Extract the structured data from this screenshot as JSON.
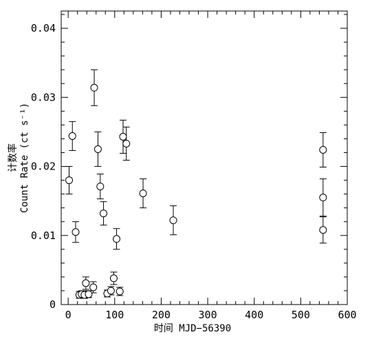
{
  "chart_data": {
    "type": "scatter",
    "xlabel": "时间 MJD−56390",
    "ylabel": "Count Rate (ct s⁻¹)",
    "ylabel_prefix": "计数率",
    "xlim": [
      -15,
      600
    ],
    "ylim": [
      0,
      0.0425
    ],
    "x_ticks": [
      0,
      100,
      200,
      300,
      400,
      500,
      600
    ],
    "y_ticks": [
      0,
      0.01,
      0.02,
      0.03,
      0.04
    ],
    "x_tick_labels": [
      "0",
      "100",
      "200",
      "300",
      "400",
      "500",
      "600"
    ],
    "y_tick_labels": [
      "0",
      "0.01",
      "0.02",
      "0.03",
      "0.04"
    ],
    "grid": false,
    "marker": "open-circle",
    "points": [
      {
        "x": 2,
        "y": 0.018,
        "err": 0.002
      },
      {
        "x": 9,
        "y": 0.0244,
        "err": 0.0021
      },
      {
        "x": 16,
        "y": 0.0105,
        "err": 0.0015
      },
      {
        "x": 24,
        "y": 0.0014,
        "err": 0.0005
      },
      {
        "x": 29,
        "y": 0.0015,
        "err": 0.0005
      },
      {
        "x": 35,
        "y": 0.0014,
        "err": 0.0005
      },
      {
        "x": 38,
        "y": 0.0031,
        "err": 0.0009
      },
      {
        "x": 44,
        "y": 0.0015,
        "err": 0.0005
      },
      {
        "x": 54,
        "y": 0.0025,
        "err": 0.0008
      },
      {
        "x": 56,
        "y": 0.0314,
        "err": 0.0026
      },
      {
        "x": 64,
        "y": 0.0225,
        "err": 0.0025
      },
      {
        "x": 69,
        "y": 0.0171,
        "err": 0.0018
      },
      {
        "x": 76,
        "y": 0.0132,
        "err": 0.0017
      },
      {
        "x": 84,
        "y": 0.0016,
        "err": 0.0005
      },
      {
        "x": 92,
        "y": 0.002,
        "err": 0.0006
      },
      {
        "x": 98,
        "y": 0.0038,
        "err": 0.0009
      },
      {
        "x": 104,
        "y": 0.0095,
        "err": 0.0015
      },
      {
        "x": 111,
        "y": 0.0019,
        "err": 0.0006
      },
      {
        "x": 118,
        "y": 0.0243,
        "err": 0.0024
      },
      {
        "x": 125,
        "y": 0.0233,
        "err": 0.0024
      },
      {
        "x": 161,
        "y": 0.0161,
        "err": 0.0021
      },
      {
        "x": 226,
        "y": 0.0122,
        "err": 0.0021
      },
      {
        "x": 548,
        "y": 0.0224,
        "err": 0.0025
      },
      {
        "x": 548,
        "y": 0.0155,
        "err": 0.0027
      },
      {
        "x": 548,
        "y": 0.0108,
        "err": 0.0019
      }
    ]
  }
}
